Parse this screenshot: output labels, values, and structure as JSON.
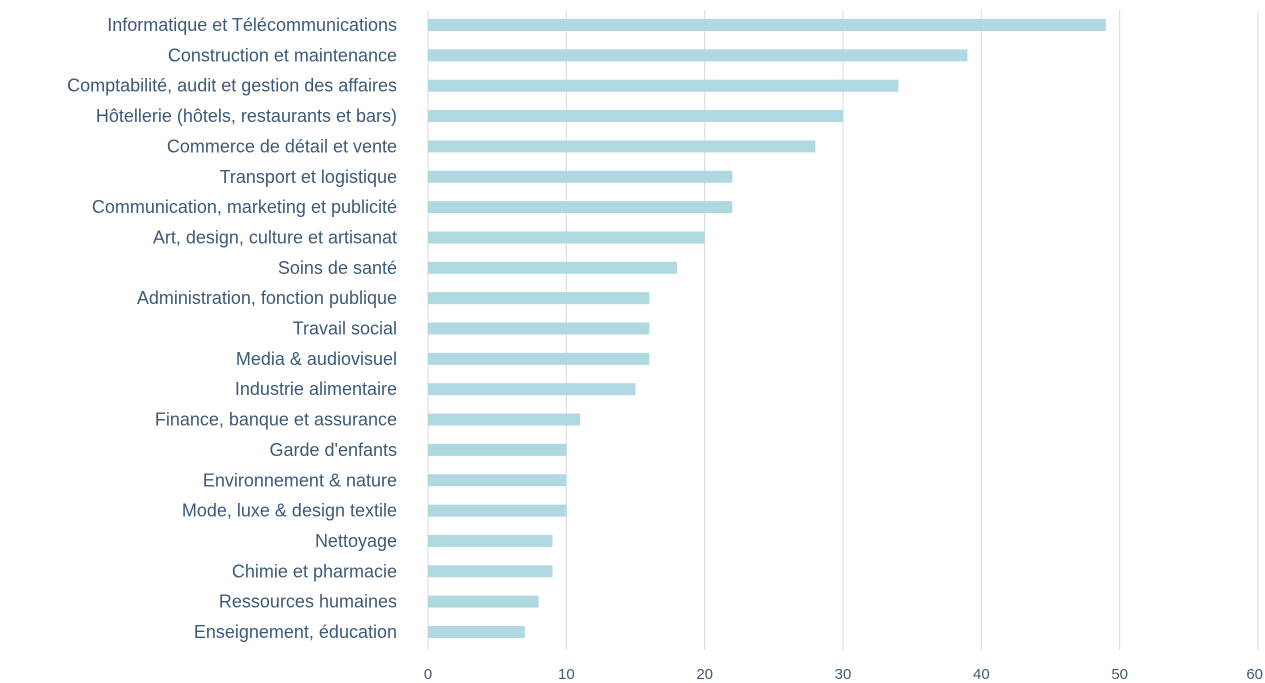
{
  "chart_data": {
    "type": "bar",
    "orientation": "horizontal",
    "categories": [
      "Informatique et Télécommunications",
      "Construction et maintenance",
      "Comptabilité, audit et gestion des affaires",
      "Hôtellerie (hôtels, restaurants et bars)",
      "Commerce de détail et vente",
      "Transport et logistique",
      "Communication, marketing et publicité",
      "Art, design, culture et artisanat",
      "Soins de santé",
      "Administration, fonction publique",
      "Travail social",
      "Media & audiovisuel",
      "Industrie alimentaire",
      "Finance, banque et assurance",
      "Garde d'enfants",
      "Environnement & nature",
      "Mode, luxe & design textile",
      "Nettoyage",
      "Chimie et pharmacie",
      "Ressources humaines",
      "Enseignement, éducation"
    ],
    "values": [
      49,
      39,
      34,
      30,
      28,
      22,
      22,
      20,
      18,
      16,
      16,
      16,
      15,
      11,
      10,
      10,
      10,
      9,
      9,
      8,
      7
    ],
    "xlim": [
      0,
      60
    ],
    "xticks": [
      "0",
      "10",
      "20",
      "30",
      "40",
      "50",
      "60"
    ],
    "grid": "vertical",
    "bar_color": "#b0d8e0",
    "grid_color": "#d9d9d9",
    "text_color": "#3c5a78",
    "title": "",
    "xlabel": "",
    "ylabel": ""
  }
}
